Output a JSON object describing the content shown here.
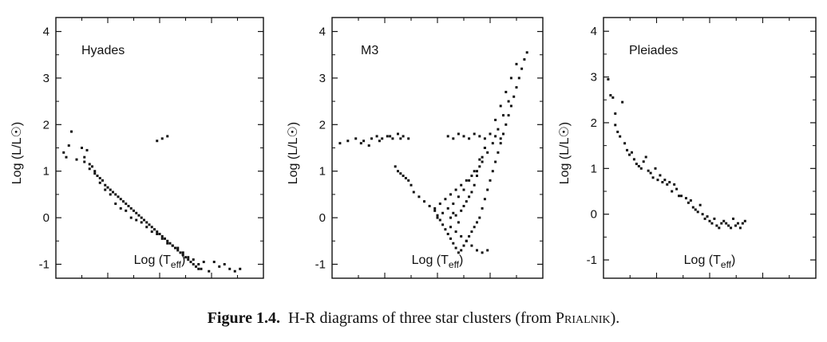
{
  "chart_data": [
    {
      "type": "scatter",
      "title": "Hyades",
      "ylabel": "Log (L/L☉)",
      "xlabel_main": "Log (T",
      "xlabel_sub": "eff",
      "xlabel_close": ")",
      "ylim": [
        -1.3,
        4.3
      ],
      "xlim": [
        4.25,
        3.45
      ],
      "yticks": [
        "4",
        "3",
        "2",
        "1",
        "0",
        "-1"
      ],
      "grid": false,
      "series": [
        {
          "x": [
            4.22,
            4.2,
            4.21,
            4.19,
            4.17,
            4.15,
            4.14,
            4.13,
            4.12,
            4.11,
            4.1,
            4.09,
            4.08,
            4.07,
            4.06,
            4.05,
            4.04,
            4.03,
            4.02,
            4.01,
            4.0,
            3.99,
            3.98,
            3.97,
            3.96,
            3.95,
            3.94,
            3.93,
            3.92,
            3.91,
            3.9,
            3.89,
            3.88,
            3.87,
            3.86,
            3.85,
            3.84,
            3.83,
            3.82,
            3.81,
            3.8,
            3.79,
            3.78,
            3.77,
            3.76,
            3.75,
            3.74,
            3.73,
            3.72,
            3.71,
            3.7,
            3.69,
            3.68,
            3.66,
            3.64,
            3.62,
            3.6,
            3.58,
            3.56,
            3.54,
            4.14,
            4.12,
            4.1,
            4.08,
            4.06,
            4.04,
            4.02,
            4.0,
            3.98,
            3.96,
            3.94,
            3.92,
            3.9,
            3.88,
            3.86,
            3.84,
            3.82,
            3.8,
            3.78,
            3.76,
            3.74,
            3.72,
            3.7,
            3.86,
            3.84,
            3.82
          ],
          "y": [
            1.4,
            1.55,
            1.3,
            1.85,
            1.25,
            1.5,
            1.2,
            1.45,
            1.05,
            1.1,
            0.95,
            0.9,
            0.85,
            0.8,
            0.7,
            0.65,
            0.6,
            0.55,
            0.5,
            0.45,
            0.4,
            0.35,
            0.3,
            0.25,
            0.2,
            0.15,
            0.1,
            0.05,
            0.0,
            -0.05,
            -0.1,
            -0.15,
            -0.2,
            -0.25,
            -0.3,
            -0.35,
            -0.4,
            -0.45,
            -0.5,
            -0.55,
            -0.6,
            -0.65,
            -0.7,
            -0.75,
            -0.8,
            -0.85,
            -0.9,
            -0.95,
            -1.0,
            -1.05,
            -1.1,
            -1.1,
            -0.95,
            -1.15,
            -0.95,
            -1.05,
            -1.0,
            -1.1,
            -1.15,
            -1.1,
            1.3,
            1.15,
            1.0,
            0.75,
            0.6,
            0.5,
            0.3,
            0.2,
            0.15,
            0.0,
            -0.05,
            -0.1,
            -0.2,
            -0.3,
            -0.35,
            -0.45,
            -0.55,
            -0.6,
            -0.65,
            -0.75,
            -0.85,
            -0.9,
            -1.0,
            1.65,
            1.7,
            1.75
          ]
        }
      ]
    },
    {
      "type": "scatter",
      "title": "M3",
      "ylabel": "Log (L/L☉)",
      "xlabel_main": "Log (T",
      "xlabel_sub": "eff",
      "xlabel_close": ")",
      "ylim": [
        -1.3,
        4.3
      ],
      "xlim": [
        4.25,
        3.45
      ],
      "yticks": [
        "4",
        "3",
        "2",
        "1",
        "0",
        "-1"
      ],
      "grid": false,
      "series": [
        {
          "x": [
            4.22,
            4.19,
            4.16,
            4.13,
            4.1,
            4.08,
            4.06,
            4.04,
            4.02,
            4.0,
            3.98,
            3.96,
            4.14,
            4.11,
            4.07,
            4.03,
            3.99,
            4.01,
            4.0,
            3.99,
            3.98,
            3.97,
            3.96,
            3.95,
            3.94,
            3.92,
            3.9,
            3.88,
            3.86,
            3.85,
            3.84,
            3.83,
            3.82,
            3.81,
            3.8,
            3.79,
            3.78,
            3.77,
            3.76,
            3.75,
            3.74,
            3.73,
            3.72,
            3.71,
            3.7,
            3.69,
            3.68,
            3.67,
            3.66,
            3.65,
            3.64,
            3.63,
            3.62,
            3.61,
            3.6,
            3.59,
            3.58,
            3.57,
            3.56,
            3.55,
            3.54,
            3.53,
            3.52,
            3.51,
            3.86,
            3.84,
            3.82,
            3.8,
            3.78,
            3.76,
            3.74,
            3.72,
            3.7,
            3.68,
            3.66,
            3.64,
            3.62,
            3.6,
            3.58,
            3.81,
            3.79,
            3.77,
            3.75,
            3.73,
            3.71,
            3.69,
            3.67,
            3.65,
            3.63,
            3.61,
            3.8,
            3.78,
            3.76,
            3.74,
            3.72,
            3.7,
            3.68,
            3.66,
            3.8,
            3.79,
            3.78,
            3.77,
            3.76,
            3.75,
            3.74,
            3.73,
            3.72,
            3.71,
            3.7,
            3.69,
            3.68,
            3.67,
            3.85,
            3.83,
            3.81,
            3.79,
            3.77,
            3.75,
            3.73,
            3.71,
            3.69,
            3.67,
            3.65,
            3.63,
            3.61,
            3.59,
            3.57,
            3.55
          ],
          "y": [
            1.6,
            1.65,
            1.7,
            1.65,
            1.7,
            1.75,
            1.7,
            1.75,
            1.7,
            1.8,
            1.75,
            1.7,
            1.6,
            1.55,
            1.65,
            1.75,
            1.7,
            1.1,
            1.0,
            0.95,
            0.9,
            0.85,
            0.8,
            0.7,
            0.55,
            0.45,
            0.35,
            0.25,
            0.15,
            0.05,
            -0.05,
            -0.15,
            -0.25,
            -0.35,
            -0.45,
            -0.55,
            -0.65,
            -0.75,
            -0.7,
            -0.6,
            -0.5,
            -0.4,
            -0.3,
            -0.2,
            -0.1,
            0.0,
            0.2,
            0.4,
            0.6,
            0.8,
            1.0,
            1.2,
            1.4,
            1.6,
            1.8,
            2.0,
            2.2,
            2.4,
            2.6,
            2.8,
            3.0,
            3.2,
            3.4,
            3.55,
            0.2,
            0.3,
            0.4,
            0.5,
            0.6,
            0.7,
            0.8,
            0.9,
            1.0,
            1.2,
            1.4,
            1.6,
            1.9,
            2.2,
            2.5,
            1.75,
            1.7,
            1.8,
            1.75,
            1.7,
            1.8,
            1.75,
            1.7,
            1.8,
            1.75,
            1.7,
            -0.2,
            -0.3,
            -0.4,
            -0.5,
            -0.6,
            -0.7,
            -0.75,
            -0.7,
            0.0,
            0.1,
            0.05,
            -0.1,
            0.15,
            0.25,
            0.35,
            0.45,
            0.55,
            0.7,
            0.9,
            1.1,
            1.3,
            1.5,
            0.0,
            0.1,
            0.2,
            0.3,
            0.45,
            0.6,
            0.8,
            1.0,
            1.25,
            1.5,
            1.8,
            2.1,
            2.4,
            2.7,
            3.0,
            3.3
          ]
        }
      ]
    },
    {
      "type": "scatter",
      "title": "Pleiades",
      "ylabel": "Log (L/L☉)",
      "xlabel_main": "Log (T",
      "xlabel_sub": "eff",
      "xlabel_close": ")",
      "ylim": [
        -1.4,
        4.3
      ],
      "xlim": [
        4.45,
        3.55
      ],
      "yticks": [
        "4",
        "3",
        "2",
        "1",
        "0",
        "-1"
      ],
      "grid": false,
      "series": [
        {
          "x": [
            4.43,
            4.42,
            4.41,
            4.4,
            4.4,
            4.39,
            4.38,
            4.37,
            4.36,
            4.35,
            4.34,
            4.33,
            4.32,
            4.31,
            4.3,
            4.29,
            4.28,
            4.27,
            4.26,
            4.25,
            4.24,
            4.23,
            4.22,
            4.21,
            4.2,
            4.19,
            4.18,
            4.17,
            4.16,
            4.15,
            4.14,
            4.13,
            4.12,
            4.1,
            4.09,
            4.08,
            4.07,
            4.06,
            4.05,
            4.04,
            4.03,
            4.02,
            4.01,
            4.0,
            3.99,
            3.98,
            3.97,
            3.96,
            3.95,
            3.94,
            3.93,
            3.92,
            3.91,
            3.9,
            3.89,
            3.88,
            3.87,
            3.86,
            3.85
          ],
          "y": [
            2.95,
            2.6,
            2.55,
            2.2,
            1.95,
            1.8,
            1.7,
            2.45,
            1.55,
            1.4,
            1.3,
            1.35,
            1.2,
            1.1,
            1.05,
            1.0,
            1.15,
            1.25,
            0.95,
            0.9,
            0.8,
            1.0,
            0.75,
            0.85,
            0.7,
            0.75,
            0.65,
            0.7,
            0.5,
            0.65,
            0.55,
            0.4,
            0.4,
            0.35,
            0.25,
            0.3,
            0.15,
            0.1,
            0.05,
            0.2,
            0.0,
            -0.1,
            -0.05,
            -0.15,
            -0.2,
            -0.1,
            -0.25,
            -0.3,
            -0.2,
            -0.15,
            -0.2,
            -0.25,
            -0.3,
            -0.1,
            -0.25,
            -0.2,
            -0.3,
            -0.2,
            -0.15
          ]
        }
      ]
    }
  ],
  "caption": {
    "label": "Figure 1.4.",
    "text": "H-R diagrams of three star clusters (from",
    "name": "Prialnik",
    "end": ")."
  }
}
